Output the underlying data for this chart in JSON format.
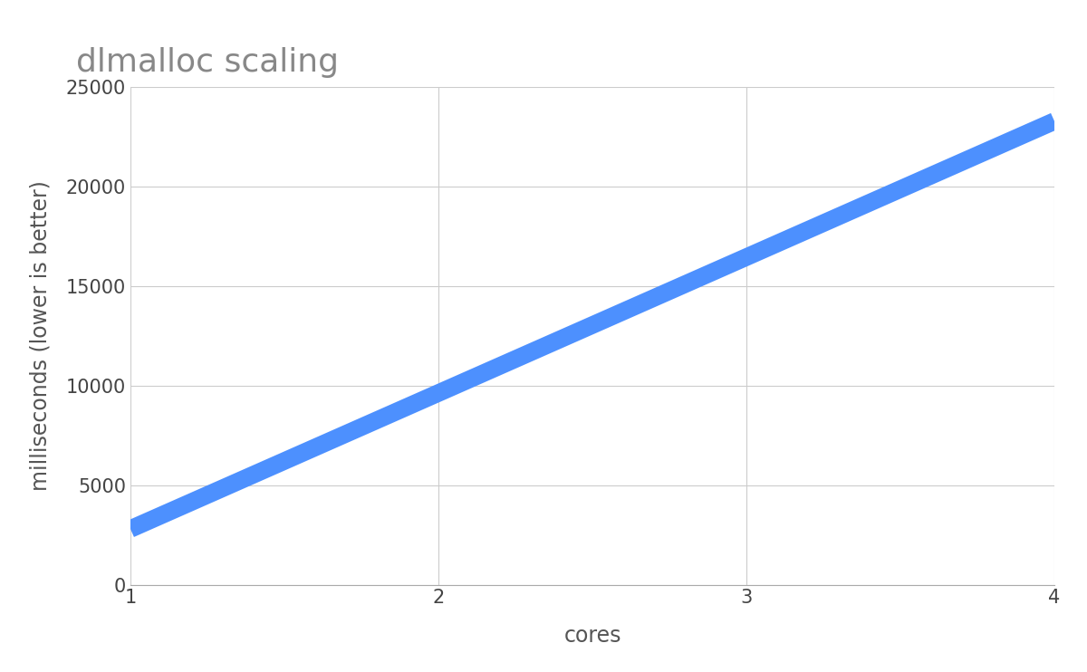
{
  "title": "dlmalloc scaling",
  "xlabel": "cores",
  "ylabel": "milliseconds (lower is better)",
  "x": [
    1,
    4
  ],
  "y": [
    2800,
    23300
  ],
  "line_color": "#4d90fe",
  "line_width": 14,
  "xlim": [
    1,
    4
  ],
  "ylim": [
    0,
    25000
  ],
  "xticks": [
    1,
    2,
    3,
    4
  ],
  "yticks": [
    0,
    5000,
    10000,
    15000,
    20000,
    25000
  ],
  "title_fontsize": 26,
  "title_color": "#888888",
  "axis_label_fontsize": 17,
  "tick_fontsize": 15,
  "grid_color": "#cccccc",
  "background_color": "#ffffff"
}
